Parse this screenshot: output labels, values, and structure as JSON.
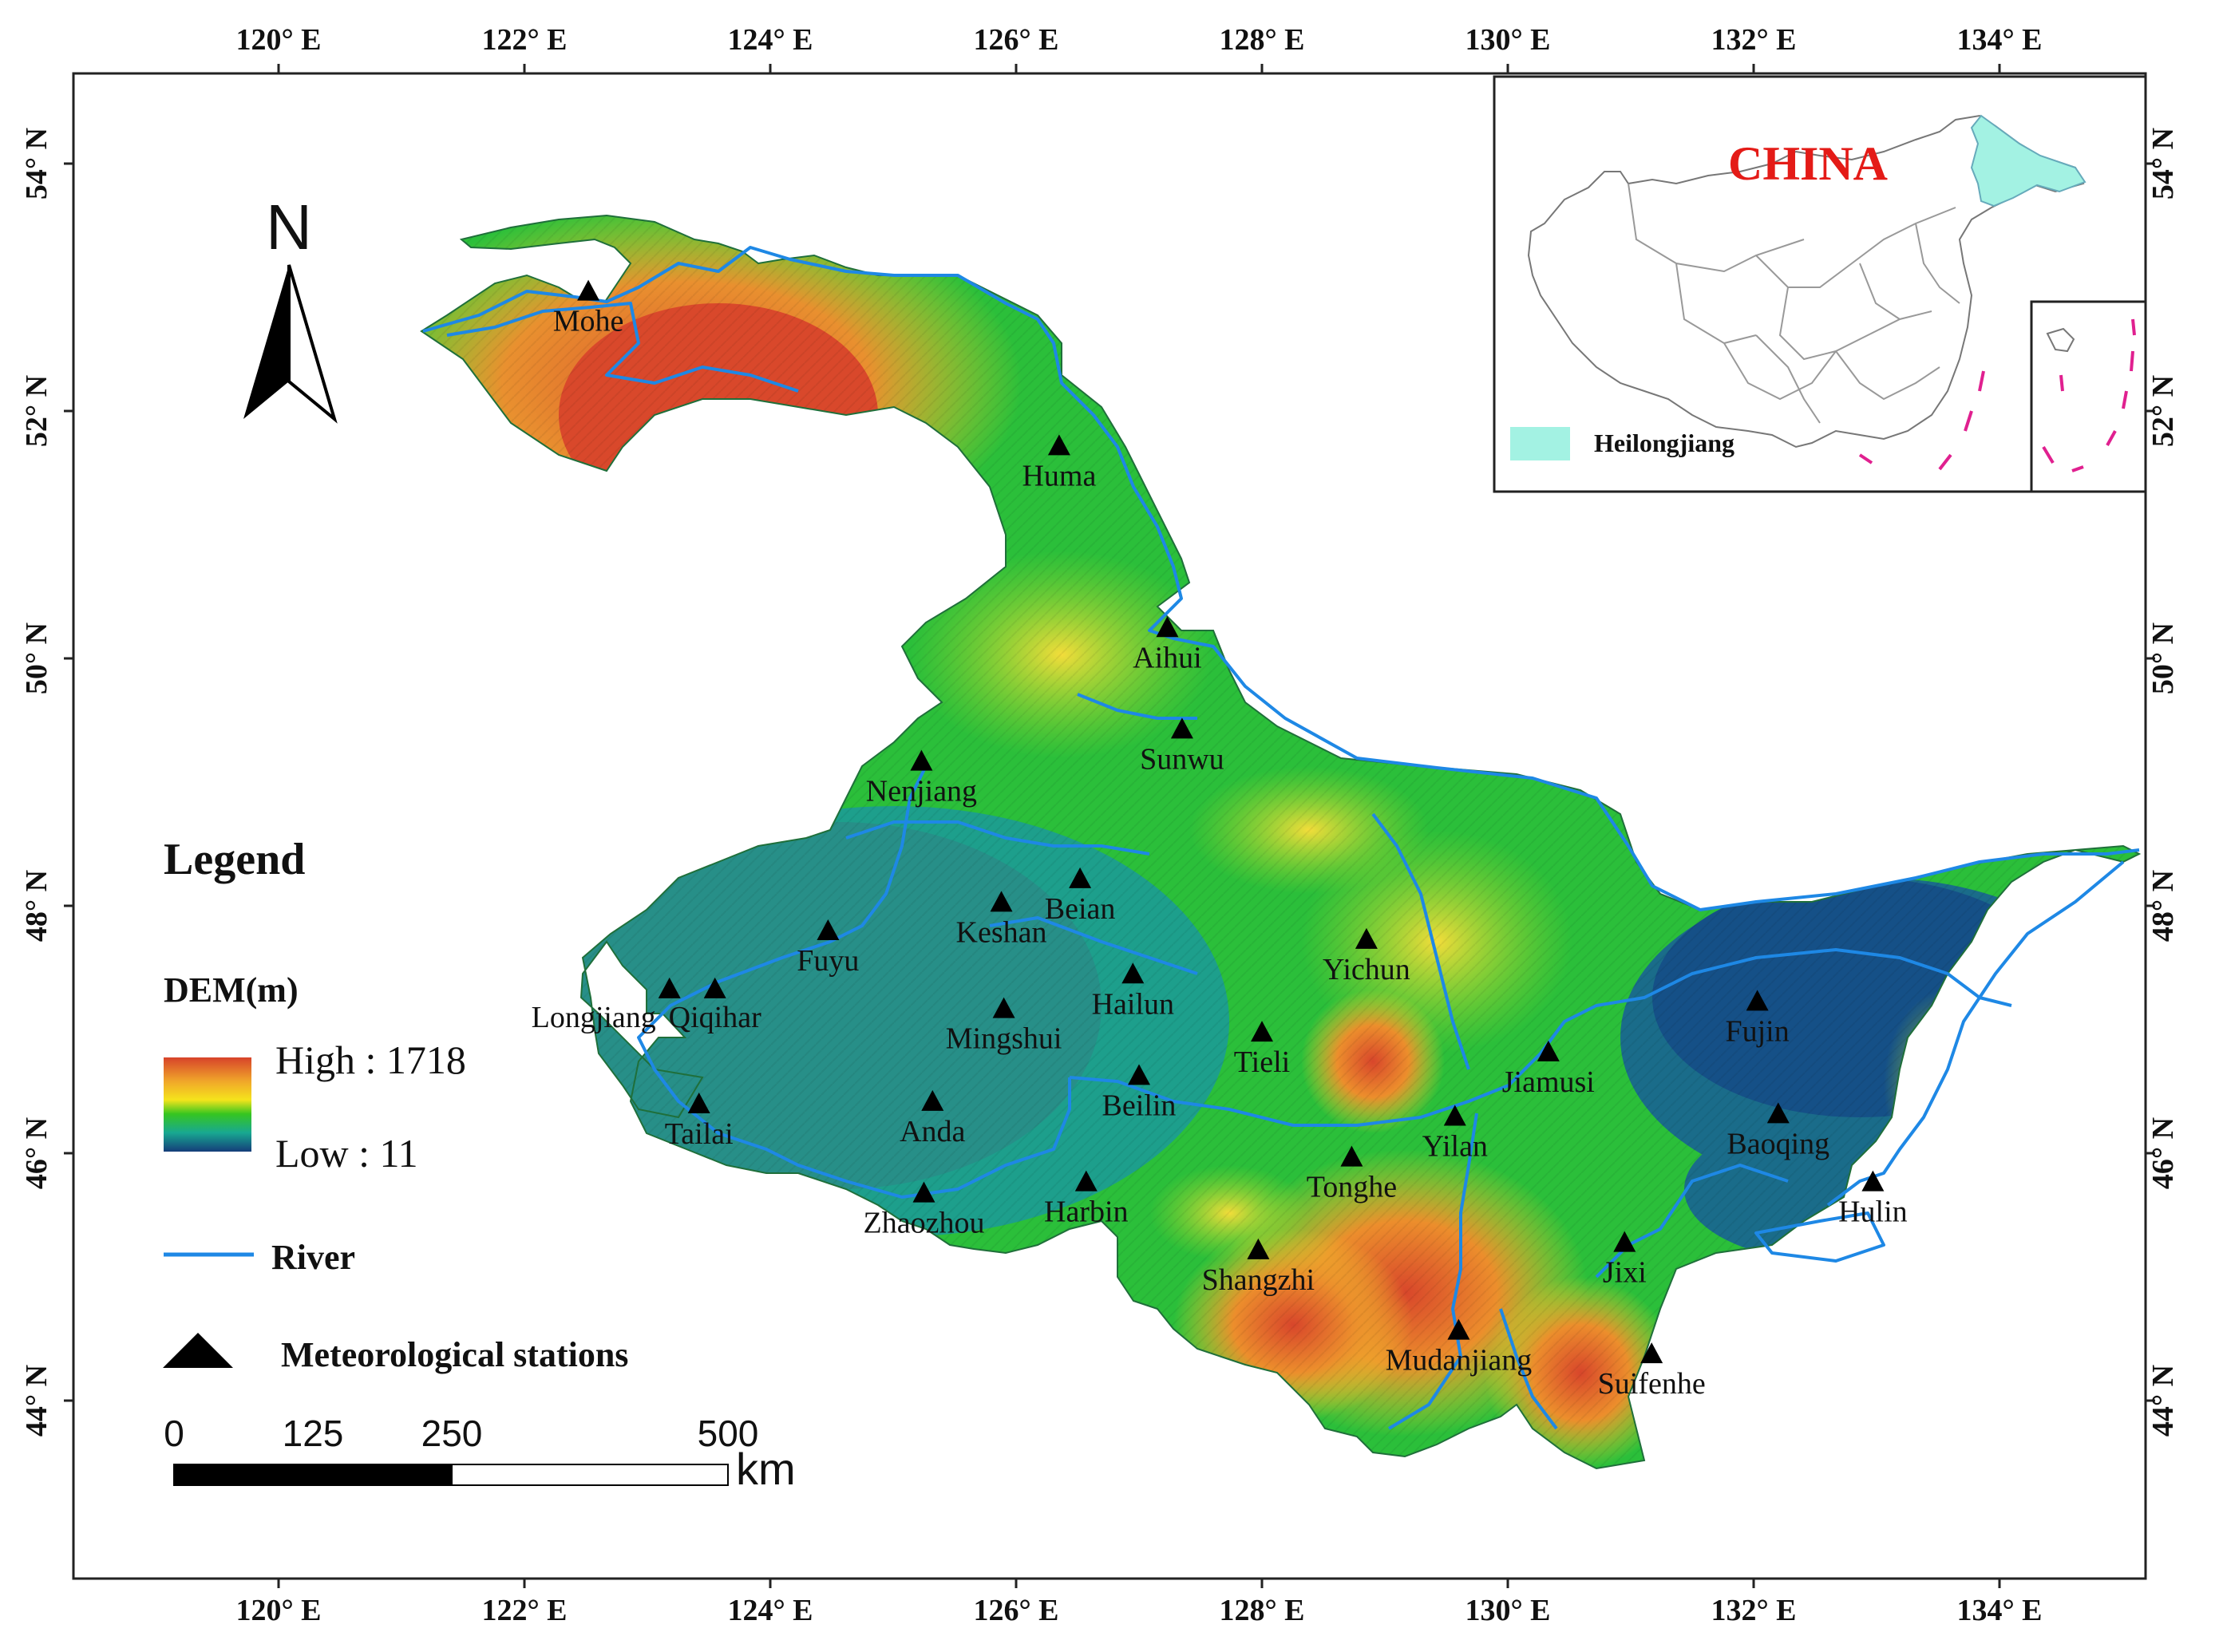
{
  "map": {
    "longitude_ticks": [
      "120° E",
      "122° E",
      "124° E",
      "126° E",
      "128° E",
      "130° E",
      "132° E",
      "134° E"
    ],
    "latitude_ticks": [
      "54° N",
      "52° N",
      "50° N",
      "48° N",
      "46° N",
      "44° N"
    ],
    "north_arrow": "N",
    "stations": [
      {
        "name": "Mohe",
        "lon": 122.52,
        "lat": 52.97
      },
      {
        "name": "Huma",
        "lon": 126.35,
        "lat": 51.72
      },
      {
        "name": "Aihui",
        "lon": 127.23,
        "lat": 50.25
      },
      {
        "name": "Sunwu",
        "lon": 127.35,
        "lat": 49.43
      },
      {
        "name": "Nenjiang",
        "lon": 125.23,
        "lat": 49.17
      },
      {
        "name": "Beian",
        "lon": 126.52,
        "lat": 48.22
      },
      {
        "name": "Keshan",
        "lon": 125.88,
        "lat": 48.03
      },
      {
        "name": "Fuyu",
        "lon": 124.47,
        "lat": 47.8
      },
      {
        "name": "Longjiang",
        "lon": 123.18,
        "lat": 47.33
      },
      {
        "name": "Qiqihar",
        "lon": 123.55,
        "lat": 47.33
      },
      {
        "name": "Hailun",
        "lon": 126.95,
        "lat": 47.45
      },
      {
        "name": "Mingshui",
        "lon": 125.9,
        "lat": 47.17
      },
      {
        "name": "Yichun",
        "lon": 128.85,
        "lat": 47.73
      },
      {
        "name": "Tieli",
        "lon": 128.0,
        "lat": 46.98
      },
      {
        "name": "Beilin",
        "lon": 127.0,
        "lat": 46.63
      },
      {
        "name": "Tailai",
        "lon": 123.42,
        "lat": 46.4
      },
      {
        "name": "Anda",
        "lon": 125.32,
        "lat": 46.42
      },
      {
        "name": "Jiamusi",
        "lon": 130.33,
        "lat": 46.82
      },
      {
        "name": "Fujin",
        "lon": 132.03,
        "lat": 47.23
      },
      {
        "name": "Yilan",
        "lon": 129.57,
        "lat": 46.3
      },
      {
        "name": "Baoqing",
        "lon": 132.2,
        "lat": 46.32
      },
      {
        "name": "Tonghe",
        "lon": 128.73,
        "lat": 45.97
      },
      {
        "name": "Harbin",
        "lon": 126.57,
        "lat": 45.77
      },
      {
        "name": "Zhaozhou",
        "lon": 125.25,
        "lat": 45.68
      },
      {
        "name": "Hulin",
        "lon": 132.97,
        "lat": 45.77
      },
      {
        "name": "Shangzhi",
        "lon": 127.97,
        "lat": 45.22
      },
      {
        "name": "Jixi",
        "lon": 130.95,
        "lat": 45.28
      },
      {
        "name": "Mudanjiang",
        "lon": 129.6,
        "lat": 44.57
      },
      {
        "name": "Suifenhe",
        "lon": 131.17,
        "lat": 44.38
      }
    ]
  },
  "legend": {
    "title": "Legend",
    "dem_label": "DEM(m)",
    "high_label": "High : 1718",
    "low_label": "Low : 11",
    "dem_high": 1718,
    "dem_low": 11,
    "river_label": "River",
    "stations_label": "Meteorological  stations",
    "colors": {
      "high": "#d7432a",
      "mid_high": "#f5e41c",
      "mid": "#36c61f",
      "mid_low": "#18a891",
      "low": "#153d7a",
      "river": "#1e88e5"
    }
  },
  "scale_bar": {
    "labels": [
      "0",
      "125",
      "250",
      "500"
    ],
    "unit": "km"
  },
  "inset": {
    "title": "CHINA",
    "legend_label": "Heilongjiang",
    "highlight_color": "#a3f2e3"
  }
}
